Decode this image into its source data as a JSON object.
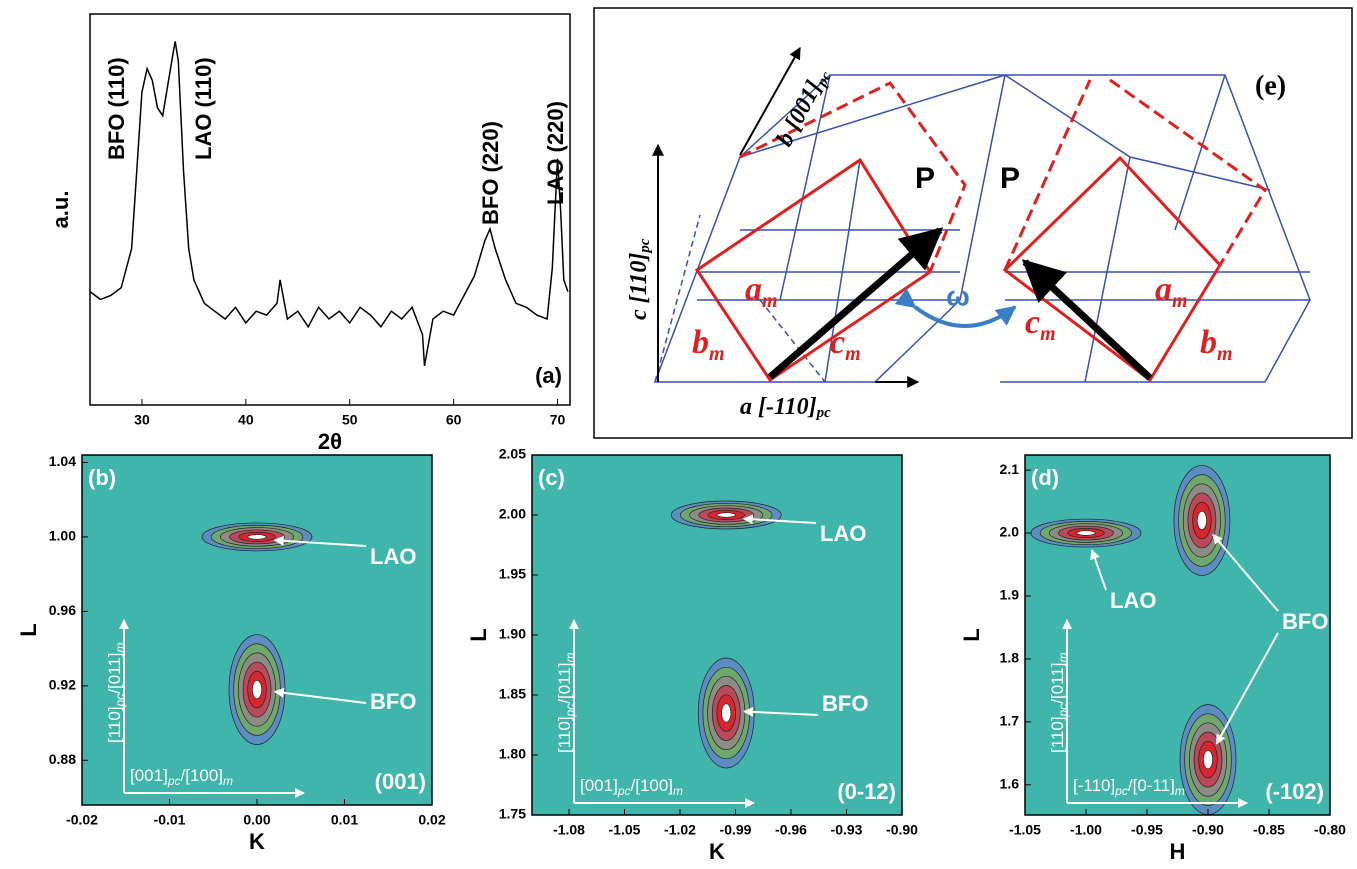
{
  "chart_data": [
    {
      "type": "line",
      "panel_label": "(a)",
      "xlabel": "2θ",
      "ylabel": "a.u.",
      "color": "#000000",
      "xlim": [
        25,
        71.2
      ],
      "ylim": [
        0,
        100
      ],
      "xticks": [
        30,
        40,
        50,
        60,
        70
      ],
      "peak_labels": [
        "BFO (110)",
        "LAO (110)",
        "BFO (220)",
        "LAO (220)"
      ],
      "x": [
        25,
        26,
        27,
        28,
        29,
        29.5,
        30,
        30.5,
        31,
        31.5,
        32,
        32.5,
        33,
        33.2,
        33.5,
        34,
        34.5,
        35,
        35.5,
        36,
        37,
        38,
        39,
        40,
        41,
        42,
        43,
        43.3,
        44,
        45,
        46,
        47,
        48,
        49,
        50,
        51,
        52,
        53,
        54,
        55,
        56,
        57,
        57.2,
        58,
        59,
        60,
        61,
        62,
        63,
        63.5,
        64,
        65,
        66,
        67,
        68,
        69,
        69.5,
        70,
        70.3,
        70.6,
        71
      ],
      "values": [
        29,
        27,
        28,
        30,
        40,
        60,
        80,
        86,
        83,
        76,
        74,
        82,
        90,
        93,
        88,
        60,
        40,
        32,
        29,
        26,
        24,
        22,
        25,
        21,
        24,
        23,
        26,
        32,
        22,
        24,
        20,
        25,
        22,
        24,
        21,
        25,
        23,
        20,
        24,
        22,
        25,
        18,
        10,
        22,
        24,
        23,
        28,
        33,
        42,
        45,
        40,
        32,
        26,
        25,
        23,
        22,
        35,
        63,
        50,
        32,
        29
      ]
    },
    {
      "type": "contour",
      "panel_label": "(b)",
      "reflection": "(001)",
      "xlabel": "K",
      "ylabel": "L",
      "xlim": [
        -0.02,
        0.02
      ],
      "ylim": [
        0.856,
        1.044
      ],
      "xticks": [
        -0.02,
        -0.01,
        {
          "value": 0,
          "label": "0.00"
        },
        0.01,
        0.02
      ],
      "yticks": [
        0.88,
        0.92,
        0.96,
        {
          "value": 1,
          "label": "1.00"
        },
        1.04
      ],
      "vertical_axis_text": [
        "[110]",
        "pc",
        "/[011]",
        "m"
      ],
      "horizontal_axis_text": [
        "[001]",
        "pc",
        "/[100]",
        "m"
      ],
      "annotations": [
        {
          "text": "LAO",
          "points": [
            {
              "x": 0,
              "y": 1.0
            }
          ]
        },
        {
          "text": "BFO",
          "points": [
            {
              "x": 0,
              "y": 0.918
            }
          ]
        }
      ]
    },
    {
      "type": "contour",
      "panel_label": "(c)",
      "reflection": "(0-12)",
      "xlabel": "K",
      "ylabel": "L",
      "xlim": [
        -1.1,
        -0.9
      ],
      "ylim": [
        1.75,
        2.05
      ],
      "xticks": [
        -1.08,
        -1.05,
        -1.02,
        -0.99,
        -0.96,
        -0.93,
        {
          "value": -0.9,
          "label": "-0.90"
        }
      ],
      "yticks": [
        1.75,
        {
          "value": 1.8,
          "label": "1.80"
        },
        1.85,
        {
          "value": 1.9,
          "label": "1.90"
        },
        1.95,
        {
          "value": 2,
          "label": "2.00"
        },
        2.05
      ],
      "vertical_axis_text": [
        "[110]",
        "pc",
        "/[011]",
        "m"
      ],
      "horizontal_axis_text": [
        "[001]",
        "pc",
        "/[100]",
        "m"
      ],
      "annotations": [
        {
          "text": "LAO",
          "points": [
            {
              "x": -0.995,
              "y": 2.0
            }
          ]
        },
        {
          "text": "BFO",
          "points": [
            {
              "x": -0.995,
              "y": 1.835
            }
          ]
        }
      ]
    },
    {
      "type": "contour",
      "panel_label": "(d)",
      "reflection": "(-102)",
      "xlabel": "H",
      "ylabel": "L",
      "xlim": [
        -1.05,
        -0.8
      ],
      "ylim": [
        1.552,
        2.124
      ],
      "xticks": [
        -1.05,
        {
          "value": -1,
          "label": "-1.00"
        },
        -0.95,
        {
          "value": -0.9,
          "label": "-0.90"
        },
        -0.85,
        {
          "value": -0.8,
          "label": "-0.80"
        }
      ],
      "yticks": [
        1.6,
        1.7,
        1.8,
        1.9,
        {
          "value": 2,
          "label": "2.0"
        },
        2.1
      ],
      "vertical_axis_text": [
        "[110]",
        "pc",
        "/[011]",
        "m"
      ],
      "horizontal_axis_text": [
        "[-110]",
        "pc",
        "/[0-11]",
        "m"
      ],
      "annotations": [
        {
          "text": "LAO",
          "points": [
            {
              "x": -1.0,
              "y": 2.0
            }
          ]
        },
        {
          "text": "BFO",
          "points": [
            {
              "x": -0.905,
              "y": 2.02
            },
            {
              "x": -0.9,
              "y": 1.64
            }
          ]
        }
      ]
    }
  ],
  "diagram": {
    "panel_label": "(e)",
    "axis_b": [
      "b",
      " [001]",
      "pc"
    ],
    "axis_c": [
      "c",
      " [110]",
      "pc"
    ],
    "axis_a": [
      "a",
      " [-110]",
      "pc"
    ],
    "polarization": [
      "P",
      "P"
    ],
    "angle": "ω",
    "left_cell": [
      [
        "a",
        "m"
      ],
      [
        "b",
        "m"
      ],
      [
        "c",
        "m"
      ]
    ],
    "right_cell": [
      [
        "a",
        "m"
      ],
      [
        "b",
        "m"
      ],
      [
        "c",
        "m"
      ]
    ]
  }
}
